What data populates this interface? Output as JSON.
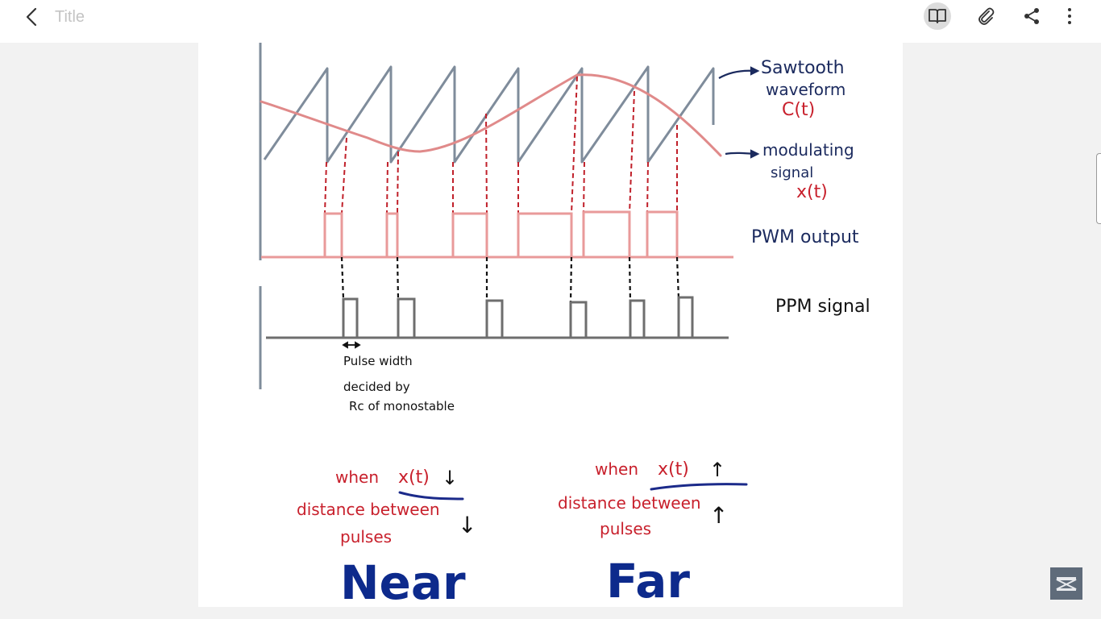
{
  "app": {
    "title": "Title",
    "icons": [
      "back-arrow-icon",
      "book-icon",
      "paperclip-icon",
      "share-icon",
      "more-vert-icon"
    ]
  },
  "diagram": {
    "labels": {
      "sawtooth_line1": "Sawtooth",
      "sawtooth_line2": "waveform",
      "sawtooth_symbol": "C(t)",
      "modulating_line1": "modulating",
      "modulating_line2": "signal",
      "modulating_symbol": "x(t)",
      "pwm": "PWM output",
      "ppm": "PPM signal",
      "pulse_width_line1": "Pulse width",
      "pulse_width_line2": "decided by",
      "pulse_width_line3": "Rc of monostable"
    },
    "near": {
      "when": "when",
      "symbol": "x(t)",
      "arrow": "↓",
      "line1": "distance between",
      "line2": "pulses",
      "arrow2": "↓",
      "result": "Near"
    },
    "far": {
      "when": "when",
      "symbol": "x(t)",
      "arrow": "↑",
      "line1": "distance between",
      "line2": "pulses",
      "arrow2": "↑",
      "result": "Far"
    },
    "colors": {
      "sawtooth": "#7f8c9b",
      "modulating": "#e08a8a",
      "pwm": "#e99a9a",
      "ppm": "#6e6e6e",
      "dash_red": "#c0202a",
      "dash_black": "#111111",
      "navy": "#1b2a5e",
      "red_text": "#c8202c",
      "result_blue": "#0d2a8c"
    }
  }
}
